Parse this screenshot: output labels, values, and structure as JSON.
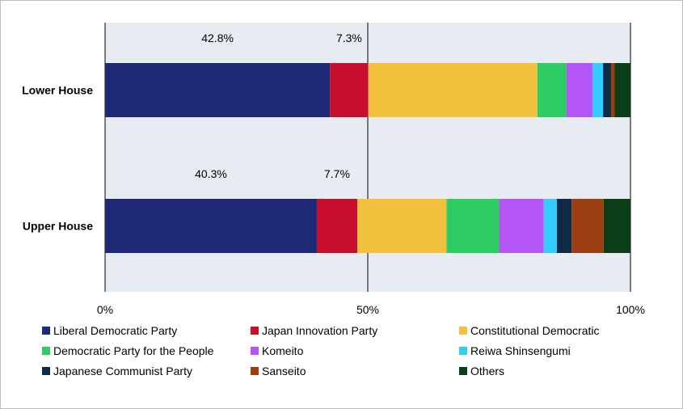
{
  "chart_data": {
    "type": "bar",
    "orientation": "horizontal",
    "stacked": true,
    "categories": [
      "Lower House",
      "Upper House"
    ],
    "series": [
      {
        "name": "Liberal Democratic Party",
        "color": "#1f2a77",
        "values": [
          42.8,
          40.3
        ]
      },
      {
        "name": "Japan Innovation Party",
        "color": "#c8102e",
        "values": [
          7.3,
          7.7
        ]
      },
      {
        "name": "Constitutional Democratic",
        "color": "#f4c13f",
        "values": [
          32.2,
          17.0
        ]
      },
      {
        "name": "Democratic Party for the People",
        "color": "#2ecc65",
        "values": [
          5.5,
          10.0
        ]
      },
      {
        "name": "Komeito",
        "color": "#b455f5",
        "values": [
          5.0,
          8.5
        ]
      },
      {
        "name": "Reiwa Shinsengumi",
        "color": "#33ccff",
        "values": [
          2.0,
          2.5
        ]
      },
      {
        "name": "Japanese Communist Party",
        "color": "#0e2a47",
        "values": [
          1.5,
          2.8
        ]
      },
      {
        "name": "Sanseito",
        "color": "#9c3f12",
        "values": [
          0.7,
          6.1
        ]
      },
      {
        "name": "Others",
        "color": "#0b3d17",
        "values": [
          3.0,
          5.1
        ]
      }
    ],
    "data_labels": [
      {
        "category": "Lower House",
        "series": "Liberal Democratic Party",
        "text": "42.8%"
      },
      {
        "category": "Lower House",
        "series": "Japan Innovation Party",
        "text": "7.3%"
      },
      {
        "category": "Upper House",
        "series": "Liberal Democratic Party",
        "text": "40.3%"
      },
      {
        "category": "Upper House",
        "series": "Japan Innovation Party",
        "text": "7.7%"
      }
    ],
    "x_ticks": [
      "0%",
      "50%",
      "100%"
    ],
    "xlim": [
      0,
      100
    ],
    "title": "",
    "xlabel": "",
    "ylabel": "",
    "grid": true,
    "legend_position": "bottom"
  }
}
